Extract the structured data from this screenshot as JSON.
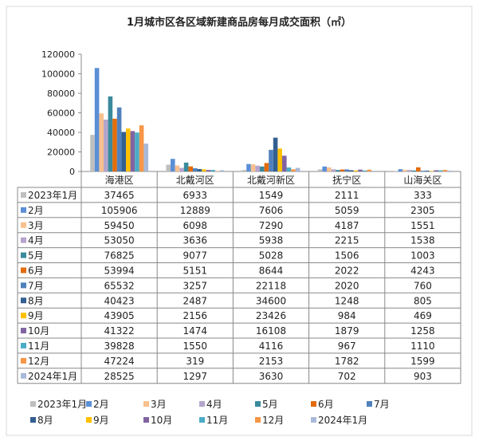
{
  "chart_data": {
    "type": "bar",
    "title": "1月城市区各区域新建商品房每月成交面积（㎡）",
    "categories": [
      "海港区",
      "北戴河区",
      "北戴河新区",
      "抚宁区",
      "山海关区"
    ],
    "ylim": [
      0,
      120000
    ],
    "yticks": [
      0,
      20000,
      40000,
      60000,
      80000,
      100000,
      120000
    ],
    "grid": false,
    "legend_position": "bottom",
    "data_table": true,
    "series": [
      {
        "name": "2023年1月",
        "color": "#bfbfbf",
        "values": [
          37465,
          6933,
          1549,
          2111,
          333
        ]
      },
      {
        "name": "2月",
        "color": "#5b8fd6",
        "values": [
          105906,
          12889,
          7606,
          5059,
          2305
        ]
      },
      {
        "name": "3月",
        "color": "#f9c08f",
        "values": [
          59450,
          6098,
          7290,
          4187,
          1551
        ]
      },
      {
        "name": "4月",
        "color": "#b4a5cc",
        "values": [
          53050,
          3636,
          5938,
          2215,
          1538
        ]
      },
      {
        "name": "5月",
        "color": "#3a8a9c",
        "values": [
          76825,
          9077,
          5028,
          1506,
          1003
        ]
      },
      {
        "name": "6月",
        "color": "#e36c0a",
        "values": [
          53994,
          5151,
          8644,
          2022,
          4243
        ]
      },
      {
        "name": "7月",
        "color": "#4f81bd",
        "values": [
          65532,
          3257,
          22118,
          2020,
          760
        ]
      },
      {
        "name": "8月",
        "color": "#335f91",
        "values": [
          40423,
          2487,
          34600,
          1248,
          805
        ]
      },
      {
        "name": "9月",
        "color": "#ffc000",
        "values": [
          43905,
          2156,
          23426,
          984,
          469
        ]
      },
      {
        "name": "10月",
        "color": "#8064a2",
        "values": [
          41322,
          1474,
          16108,
          1879,
          1258
        ]
      },
      {
        "name": "11月",
        "color": "#4bacc6",
        "values": [
          39828,
          1550,
          4116,
          967,
          1110
        ]
      },
      {
        "name": "12月",
        "color": "#f79646",
        "values": [
          47224,
          319,
          2153,
          1782,
          1599
        ]
      },
      {
        "name": "2024年1月",
        "color": "#a9b9d9",
        "values": [
          28525,
          1297,
          3630,
          702,
          903
        ]
      }
    ]
  }
}
